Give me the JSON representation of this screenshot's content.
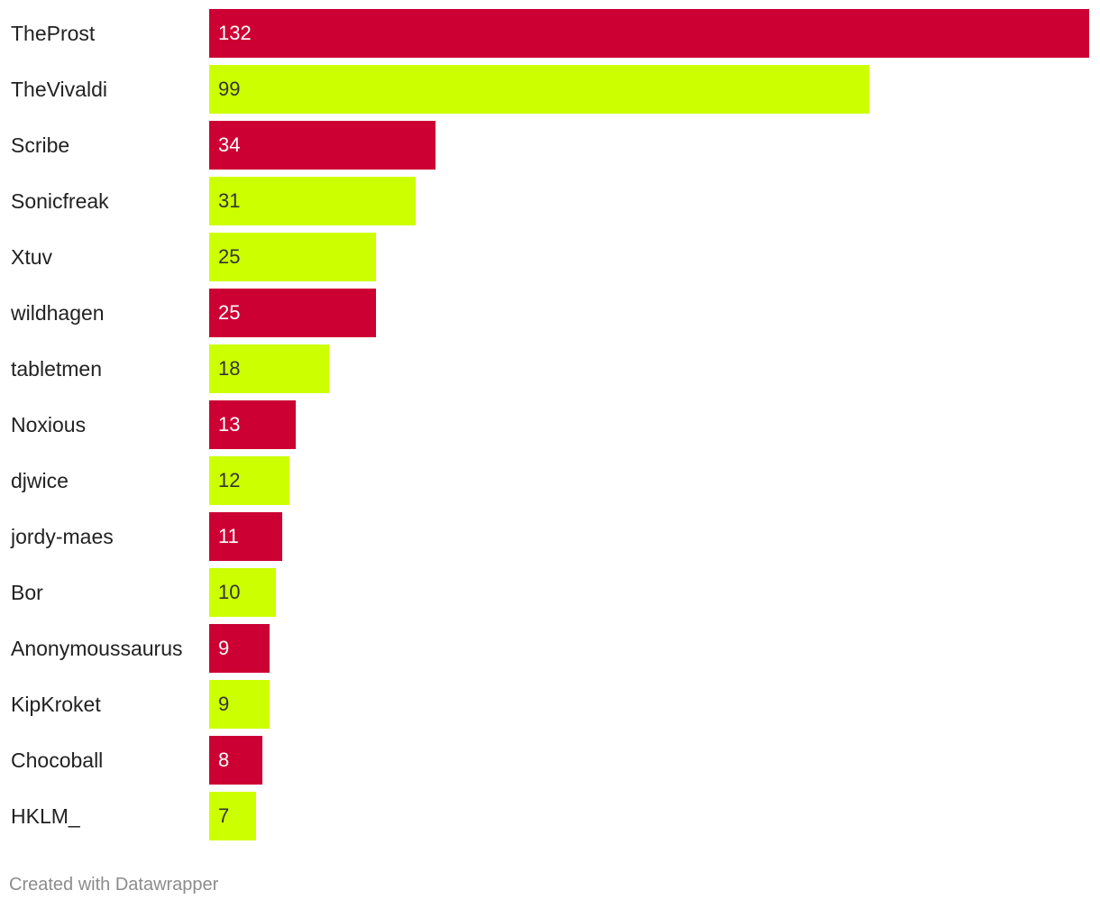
{
  "chart_data": {
    "type": "bar",
    "orientation": "horizontal",
    "categories": [
      "TheProst",
      "TheVivaldi",
      "Scribe",
      "Sonicfreak",
      "Xtuv",
      "wildhagen",
      "tabletmen",
      "Noxious",
      "djwice",
      "jordy-maes",
      "Bor",
      "Anonymoussaurus",
      "KipKroket",
      "Chocoball",
      "HKLM_"
    ],
    "values": [
      132,
      99,
      34,
      31,
      25,
      25,
      18,
      13,
      12,
      11,
      10,
      9,
      9,
      8,
      7
    ],
    "colors": [
      "#cc0033",
      "#ccff00",
      "#cc0033",
      "#ccff00",
      "#ccff00",
      "#cc0033",
      "#ccff00",
      "#cc0033",
      "#ccff00",
      "#cc0033",
      "#ccff00",
      "#cc0033",
      "#ccff00",
      "#cc0033",
      "#ccff00"
    ],
    "value_label_colors": {
      "#cc0033": "#ffffff",
      "#ccff00": "#333333"
    },
    "title": "",
    "xlabel": "",
    "ylabel": "",
    "xlim": [
      0,
      132
    ],
    "grid": false,
    "legend": "none",
    "data_labels": "inside-start"
  },
  "footer": {
    "credit": "Created with Datawrapper"
  }
}
